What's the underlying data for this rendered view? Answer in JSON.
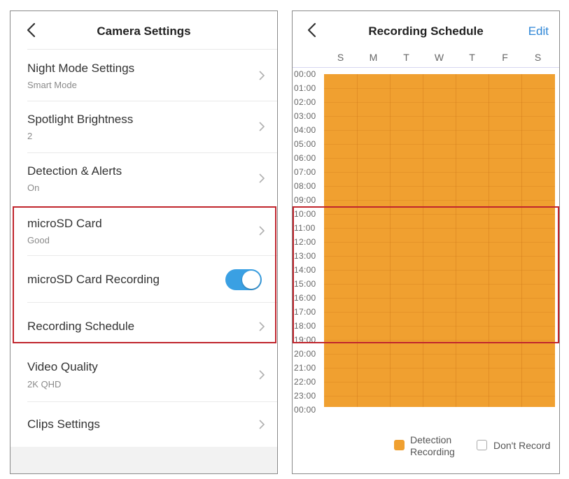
{
  "colors": {
    "accent": "#3aa0e3",
    "highlight": "#c0252d",
    "schedule": "#f0a030",
    "link": "#2e86d6"
  },
  "left": {
    "title": "Camera Settings",
    "back_icon": "chevron-left-icon",
    "items": [
      {
        "label": "Night Mode Settings",
        "sub": "Smart Mode"
      },
      {
        "label": "Spotlight Brightness",
        "sub": "2"
      },
      {
        "label": "Detection & Alerts",
        "sub": "On"
      },
      {
        "label": "microSD Card",
        "sub": "Good"
      },
      {
        "label": "microSD Card Recording",
        "toggle": true
      },
      {
        "label": "Recording Schedule"
      },
      {
        "label": "Video Quality",
        "sub": "2K QHD"
      },
      {
        "label": "Clips Settings"
      }
    ]
  },
  "right": {
    "title": "Recording Schedule",
    "edit_label": "Edit",
    "days": [
      "S",
      "M",
      "T",
      "W",
      "T",
      "F",
      "S"
    ],
    "hours": [
      "00:00",
      "01:00",
      "02:00",
      "03:00",
      "04:00",
      "05:00",
      "06:00",
      "07:00",
      "08:00",
      "09:00",
      "10:00",
      "11:00",
      "12:00",
      "13:00",
      "14:00",
      "15:00",
      "16:00",
      "17:00",
      "18:00",
      "19:00",
      "20:00",
      "21:00",
      "22:00",
      "23:00",
      "00:00"
    ],
    "legend": {
      "detection_line1": "Detection",
      "detection_line2": "Recording",
      "dont_record": "Don't Record"
    }
  }
}
